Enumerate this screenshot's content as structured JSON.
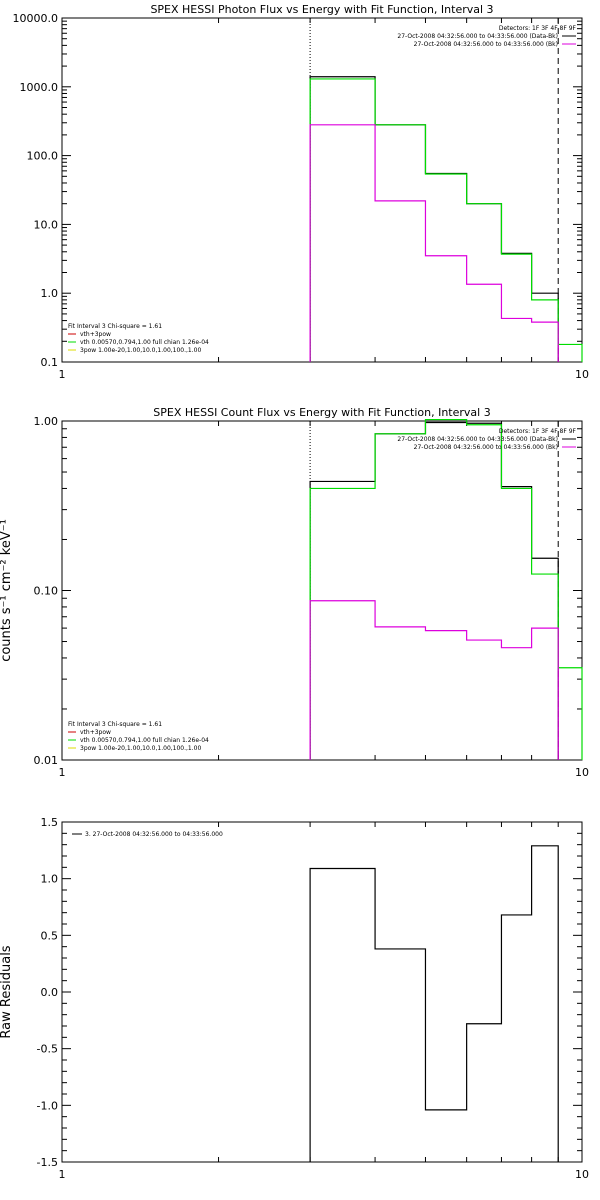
{
  "chart_data": [
    {
      "type": "line",
      "title": "SPEX HESSI Photon Flux vs Energy with Fit Function, Interval 3",
      "xlabel": "",
      "ylabel": "",
      "xscale": "log",
      "yscale": "log",
      "xlim": [
        1,
        10
      ],
      "ylim": [
        0.1,
        10000
      ],
      "x_ticks": [
        "1",
        "10"
      ],
      "y_ticks": [
        "0.1",
        "1.0",
        "10.0",
        "100.0",
        "1000.0",
        "10000.0"
      ],
      "vlines": [
        {
          "x": 3,
          "style": "dotted"
        },
        {
          "x": 9,
          "style": "dashed"
        }
      ],
      "bin_edges": [
        3,
        4,
        5,
        6,
        7,
        8,
        9,
        10
      ],
      "series": [
        {
          "name": "",
          "color": "#000000",
          "values": [
            1400,
            280,
            55,
            20,
            3.8,
            1.0,
            null
          ]
        },
        {
          "name": "vth",
          "color": "#00dd00",
          "values": [
            1300,
            280,
            54,
            20,
            3.7,
            0.8,
            0.18
          ]
        },
        {
          "name": "3pow",
          "color": "#dd00dd",
          "values": [
            280,
            22,
            3.5,
            1.35,
            0.43,
            0.38,
            null
          ]
        }
      ],
      "legend_top": {
        "placement": "top-right",
        "header": "Detectors: 1F 3F 4F 8F 9F",
        "lines": [
          {
            "text": "27-Oct-2008 04:32:56.000 to 04:33:56.000 (Data-Bk)",
            "color": "#000000"
          },
          {
            "text": "27-Oct-2008 04:32:56.000 to 04:33:56.000 (Bk)",
            "color": "#dd00dd"
          }
        ]
      },
      "legend_bottom": {
        "placement": "bottom-left",
        "header": "Fit Interval 3   Chi-square = 1.61",
        "lines": [
          {
            "text": "vth+3pow",
            "color": "#cc0000"
          },
          {
            "text": "vth 0.00570,0.794,1.00   full chian 1.26e-04",
            "color": "#00dd00"
          },
          {
            "text": "3pow 1.00e-20,1.00,10.0,1.00,100.,1.00",
            "color": "#dddd00"
          }
        ]
      }
    },
    {
      "type": "line",
      "title": "SPEX HESSI Count Flux vs Energy with Fit Function, Interval 3",
      "xlabel": "",
      "ylabel": "counts s⁻¹ cm⁻² keV⁻¹",
      "xscale": "log",
      "yscale": "log",
      "xlim": [
        1,
        10
      ],
      "ylim": [
        0.01,
        1.0
      ],
      "x_ticks": [
        "1",
        "10"
      ],
      "y_ticks": [
        "0.01",
        "0.10",
        "1.00"
      ],
      "vlines": [
        {
          "x": 3,
          "style": "dotted"
        },
        {
          "x": 9,
          "style": "dashed"
        }
      ],
      "bin_edges": [
        3,
        4,
        5,
        6,
        7,
        8,
        9,
        10
      ],
      "series": [
        {
          "name": "",
          "color": "#000000",
          "values": [
            0.44,
            0.84,
            0.98,
            0.97,
            0.41,
            0.155,
            null
          ]
        },
        {
          "name": "vth",
          "color": "#00dd00",
          "values": [
            0.4,
            0.84,
            1.02,
            0.95,
            0.4,
            0.125,
            0.035
          ]
        },
        {
          "name": "3pow",
          "color": "#dd00dd",
          "values": [
            0.087,
            0.061,
            0.058,
            0.051,
            0.046,
            0.06,
            null
          ]
        }
      ],
      "legend_top": {
        "placement": "top-right",
        "header": "Detectors: 1F 3F 4F 8F 9F",
        "lines": [
          {
            "text": "27-Oct-2008 04:32:56.000 to 04:33:56.000 (Data-Bk)",
            "color": "#000000"
          },
          {
            "text": "27-Oct-2008 04:32:56.000 to 04:33:56.000 (Bk)",
            "color": "#dd00dd"
          }
        ]
      },
      "legend_bottom": {
        "placement": "bottom-left",
        "header": "Fit Interval 3   Chi-square = 1.61",
        "lines": [
          {
            "text": "vth+3pow",
            "color": "#cc0000"
          },
          {
            "text": "vth 0.00570,0.794,1.00   full chian 1.26e-04",
            "color": "#00dd00"
          },
          {
            "text": "3pow 1.00e-20,1.00,10.0,1.00,100.,1.00",
            "color": "#dddd00"
          }
        ]
      }
    },
    {
      "type": "line",
      "title": "",
      "xlabel": "",
      "ylabel": "Raw Residuals",
      "xscale": "log",
      "yscale": "linear",
      "xlim": [
        1,
        10
      ],
      "ylim": [
        -1.5,
        1.5
      ],
      "x_ticks": [
        "1",
        "10"
      ],
      "y_ticks": [
        "-1.5",
        "-1.0",
        "-0.5",
        "0.0",
        "0.5",
        "1.0",
        "1.5"
      ],
      "vlines": [],
      "bin_edges": [
        3,
        4,
        5,
        6,
        7,
        8,
        9
      ],
      "series": [
        {
          "name": "",
          "color": "#000000",
          "values": [
            1.09,
            0.38,
            -1.04,
            -0.28,
            0.68,
            1.29
          ]
        }
      ],
      "legend_top": {
        "placement": "top-left",
        "header": "",
        "lines": [
          {
            "text": "3. 27-Oct-2008 04:32:56.000 to 04:33:56.000",
            "color": "#000000"
          }
        ]
      },
      "legend_bottom": null
    }
  ]
}
